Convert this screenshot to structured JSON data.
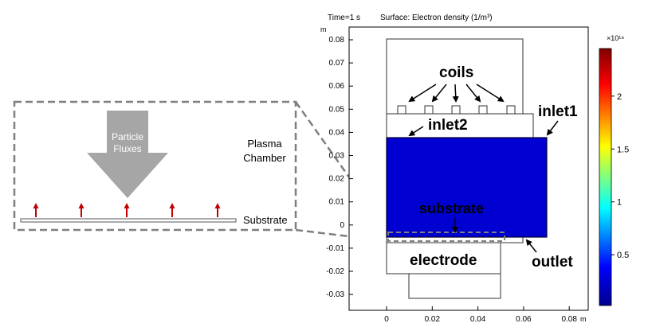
{
  "plot": {
    "time_label": "Time=1 s",
    "surface_title": "Surface: Electron density (1/m³)",
    "y_unit": "m",
    "x_unit": "m",
    "y_ticks": [
      "0.08",
      "0.07",
      "0.06",
      "0.05",
      "0.04",
      "0.03",
      "0.02",
      "0.01",
      "0",
      "-0.01",
      "-0.02",
      "-0.03"
    ],
    "x_ticks": [
      "0",
      "0.02",
      "0.04",
      "0.06",
      "0.08"
    ],
    "colorbar_multiplier": "×10¹⁸",
    "colorbar_ticks": [
      "2",
      "1.5",
      "1",
      "0.5"
    ],
    "colorbar_range": [
      0.02,
      2.45
    ],
    "colormap": [
      "#00008f",
      "#0000ff",
      "#00ffff",
      "#ffff00",
      "#ff0000",
      "#800000"
    ]
  },
  "labels": {
    "coils": "coils",
    "inlet1": "inlet1",
    "inlet2": "inlet2",
    "substrate": "substrate",
    "electrode": "electrode",
    "outlet": "outlet"
  },
  "inset": {
    "arrow_text": [
      "Particle",
      "Fluxes"
    ],
    "chamber_text": [
      "Plasma",
      "Chamber"
    ],
    "substrate_label": "Substrate"
  },
  "colors": {
    "arrow_fill": "#a6a6a6",
    "flux_arrow": "#c00000",
    "dashed": "#7f7f7f"
  }
}
